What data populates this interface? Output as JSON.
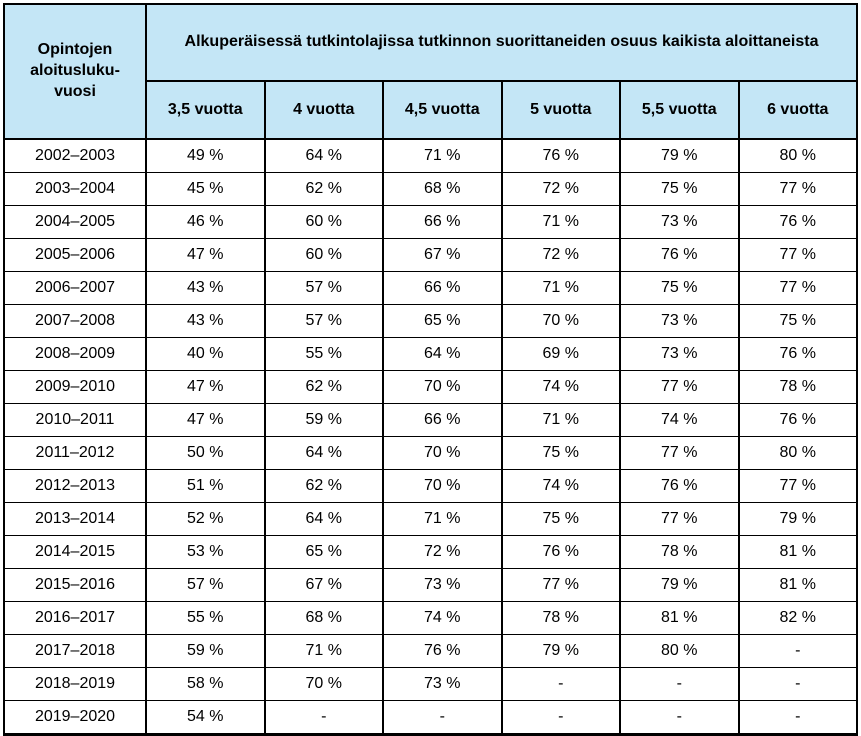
{
  "colors": {
    "header_bg": "#C4E6F6",
    "border": "#000000",
    "cell_bg": "#FFFFFF",
    "text": "#000000"
  },
  "header": {
    "year_column_label": "Opintojen\naloitusluku-\nvuosi",
    "merged_header": "Alkuperäisessä tutkintolajissa tutkinnon suorittaneiden osuus kaikista aloittaneista"
  },
  "chart_data": {
    "type": "table",
    "title": "Alkuperäisessä tutkintolajissa tutkinnon suorittaneiden osuus kaikista aloittaneista",
    "row_header": "Opintojen aloituslukuvuosi",
    "columns": [
      "3,5 vuotta",
      "4 vuotta",
      "4,5 vuotta",
      "5 vuotta",
      "5,5 vuotta",
      "6 vuotta"
    ],
    "rows": [
      "2002–2003",
      "2003–2004",
      "2004–2005",
      "2005–2006",
      "2006–2007",
      "2007–2008",
      "2008–2009",
      "2009–2010",
      "2010–2011",
      "2011–2012",
      "2012–2013",
      "2013–2014",
      "2014–2015",
      "2015–2016",
      "2016–2017",
      "2017–2018",
      "2018–2019",
      "2019–2020"
    ],
    "values_percent": [
      [
        49,
        64,
        71,
        76,
        79,
        80
      ],
      [
        45,
        62,
        68,
        72,
        75,
        77
      ],
      [
        46,
        60,
        66,
        71,
        73,
        76
      ],
      [
        47,
        60,
        67,
        72,
        76,
        77
      ],
      [
        43,
        57,
        66,
        71,
        75,
        77
      ],
      [
        43,
        57,
        65,
        70,
        73,
        75
      ],
      [
        40,
        55,
        64,
        69,
        73,
        76
      ],
      [
        47,
        62,
        70,
        74,
        77,
        78
      ],
      [
        47,
        59,
        66,
        71,
        74,
        76
      ],
      [
        50,
        64,
        70,
        75,
        77,
        80
      ],
      [
        51,
        62,
        70,
        74,
        76,
        77
      ],
      [
        52,
        64,
        71,
        75,
        77,
        79
      ],
      [
        53,
        65,
        72,
        76,
        78,
        81
      ],
      [
        57,
        67,
        73,
        77,
        79,
        81
      ],
      [
        55,
        68,
        74,
        78,
        81,
        82
      ],
      [
        59,
        71,
        76,
        79,
        80,
        null
      ],
      [
        58,
        70,
        73,
        null,
        null,
        null
      ],
      [
        54,
        null,
        null,
        null,
        null,
        null
      ]
    ],
    "value_suffix": " %",
    "missing_value_display": "-"
  }
}
